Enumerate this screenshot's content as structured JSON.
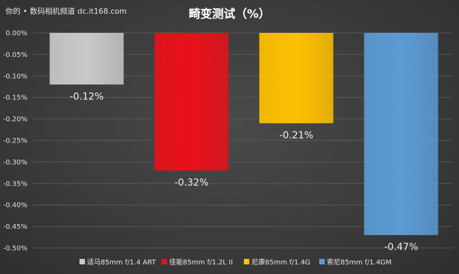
{
  "watermark": "你的 • 数码相机频道 dc.it168.com",
  "chart_data": {
    "type": "bar",
    "title": "畸变测试（%）",
    "xlabel": "",
    "ylabel": "",
    "ylim": [
      -0.5,
      0.0
    ],
    "yticks": [
      0.0,
      -0.05,
      -0.1,
      -0.15,
      -0.2,
      -0.25,
      -0.3,
      -0.35,
      -0.4,
      -0.45,
      -0.5
    ],
    "ytick_labels": [
      "0.00%",
      "-0.05%",
      "-0.10%",
      "-0.15%",
      "-0.20%",
      "-0.25%",
      "-0.30%",
      "-0.35%",
      "-0.40%",
      "-0.45%",
      "-0.50%"
    ],
    "grid": true,
    "legend_position": "bottom",
    "categories": [
      "适马85mm f/1.4 ART",
      "佳能85mm f/1.2L II",
      "尼康85mm f/1.4G",
      "索尼85mm f/1.4GM"
    ],
    "values": [
      -0.12,
      -0.32,
      -0.21,
      -0.47
    ],
    "value_labels": [
      "-0.12%",
      "-0.32%",
      "-0.21%",
      "-0.47%"
    ],
    "colors": [
      "#c8c8c8",
      "#e8101a",
      "#ffc000",
      "#5b9bd5"
    ]
  }
}
